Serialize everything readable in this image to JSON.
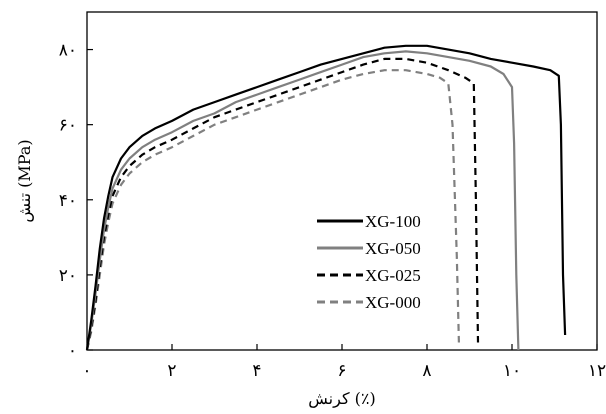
{
  "chart_data": {
    "type": "line",
    "xlabel": "کرنش (٪)",
    "ylabel": "تنش (MPa)",
    "xlim": [
      0,
      12
    ],
    "ylim": [
      0,
      90
    ],
    "xticks": [
      0,
      2,
      4,
      6,
      8,
      10,
      12
    ],
    "xtick_labels": [
      "۰",
      "۲",
      "۴",
      "۶",
      "۸",
      "۱۰",
      "۱۲"
    ],
    "yticks": [
      0,
      20,
      40,
      60,
      80
    ],
    "ytick_labels": [
      "۰",
      "۲۰",
      "۴۰",
      "۶۰",
      "۸۰"
    ],
    "grid": false,
    "legend_position": "center-right",
    "series": [
      {
        "name": "XG-100",
        "color": "#000000",
        "dash": "solid",
        "x": [
          0,
          0.1,
          0.2,
          0.3,
          0.4,
          0.5,
          0.6,
          0.8,
          1.0,
          1.3,
          1.6,
          2.0,
          2.5,
          3.0,
          3.5,
          4.0,
          4.5,
          5.0,
          5.5,
          6.0,
          6.5,
          7.0,
          7.5,
          8.0,
          8.5,
          9.0,
          9.5,
          10.0,
          10.5,
          10.9,
          11.1,
          11.15,
          11.2,
          11.25
        ],
        "y": [
          0,
          8,
          17,
          27,
          35,
          41,
          46,
          51,
          54,
          57,
          59,
          61,
          64,
          66,
          68,
          70,
          72,
          74,
          76,
          77.5,
          79,
          80.5,
          81,
          81,
          80,
          79,
          77.5,
          76.5,
          75.5,
          74.5,
          73,
          60,
          20,
          4
        ]
      },
      {
        "name": "XG-050",
        "color": "#808080",
        "dash": "solid",
        "x": [
          0,
          0.1,
          0.2,
          0.3,
          0.4,
          0.5,
          0.6,
          0.8,
          1.0,
          1.3,
          1.6,
          2.0,
          2.5,
          3.0,
          3.5,
          4.0,
          4.5,
          5.0,
          5.5,
          6.0,
          6.5,
          7.0,
          7.5,
          8.0,
          8.5,
          9.0,
          9.5,
          9.8,
          10.0,
          10.05,
          10.1,
          10.15
        ],
        "y": [
          0,
          7,
          15,
          24,
          32,
          38,
          43,
          48,
          51,
          54,
          56,
          58,
          61,
          63,
          66,
          68,
          70,
          72,
          74,
          76,
          78,
          79,
          79.5,
          79,
          78,
          77,
          75.5,
          73.5,
          70,
          55,
          20,
          0
        ]
      },
      {
        "name": "XG-025",
        "color": "#000000",
        "dash": "dashed",
        "x": [
          0,
          0.1,
          0.2,
          0.3,
          0.4,
          0.5,
          0.6,
          0.8,
          1.0,
          1.3,
          1.6,
          2.0,
          2.5,
          3.0,
          3.5,
          4.0,
          4.5,
          5.0,
          5.5,
          6.0,
          6.5,
          7.0,
          7.5,
          8.0,
          8.5,
          8.9,
          9.1,
          9.15,
          9.2
        ],
        "y": [
          0,
          6,
          13,
          22,
          30,
          36,
          41,
          46,
          49,
          52,
          54,
          56,
          59,
          62,
          64,
          66,
          68,
          70,
          72,
          74,
          76,
          77.5,
          77.5,
          76.5,
          74.5,
          72.5,
          71,
          40,
          2
        ]
      },
      {
        "name": "XG-000",
        "color": "#808080",
        "dash": "dashed",
        "x": [
          0,
          0.1,
          0.2,
          0.3,
          0.4,
          0.5,
          0.6,
          0.8,
          1.0,
          1.3,
          1.6,
          2.0,
          2.5,
          3.0,
          3.5,
          4.0,
          4.5,
          5.0,
          5.5,
          6.0,
          6.5,
          7.0,
          7.5,
          8.0,
          8.3,
          8.5,
          8.6,
          8.7,
          8.75
        ],
        "y": [
          0,
          5,
          12,
          20,
          28,
          34,
          39,
          44,
          47,
          50,
          52,
          54,
          57,
          60,
          62,
          64,
          66,
          68,
          70,
          72,
          73.5,
          74.5,
          74.5,
          73.5,
          72.5,
          71,
          60,
          25,
          2
        ]
      }
    ]
  }
}
